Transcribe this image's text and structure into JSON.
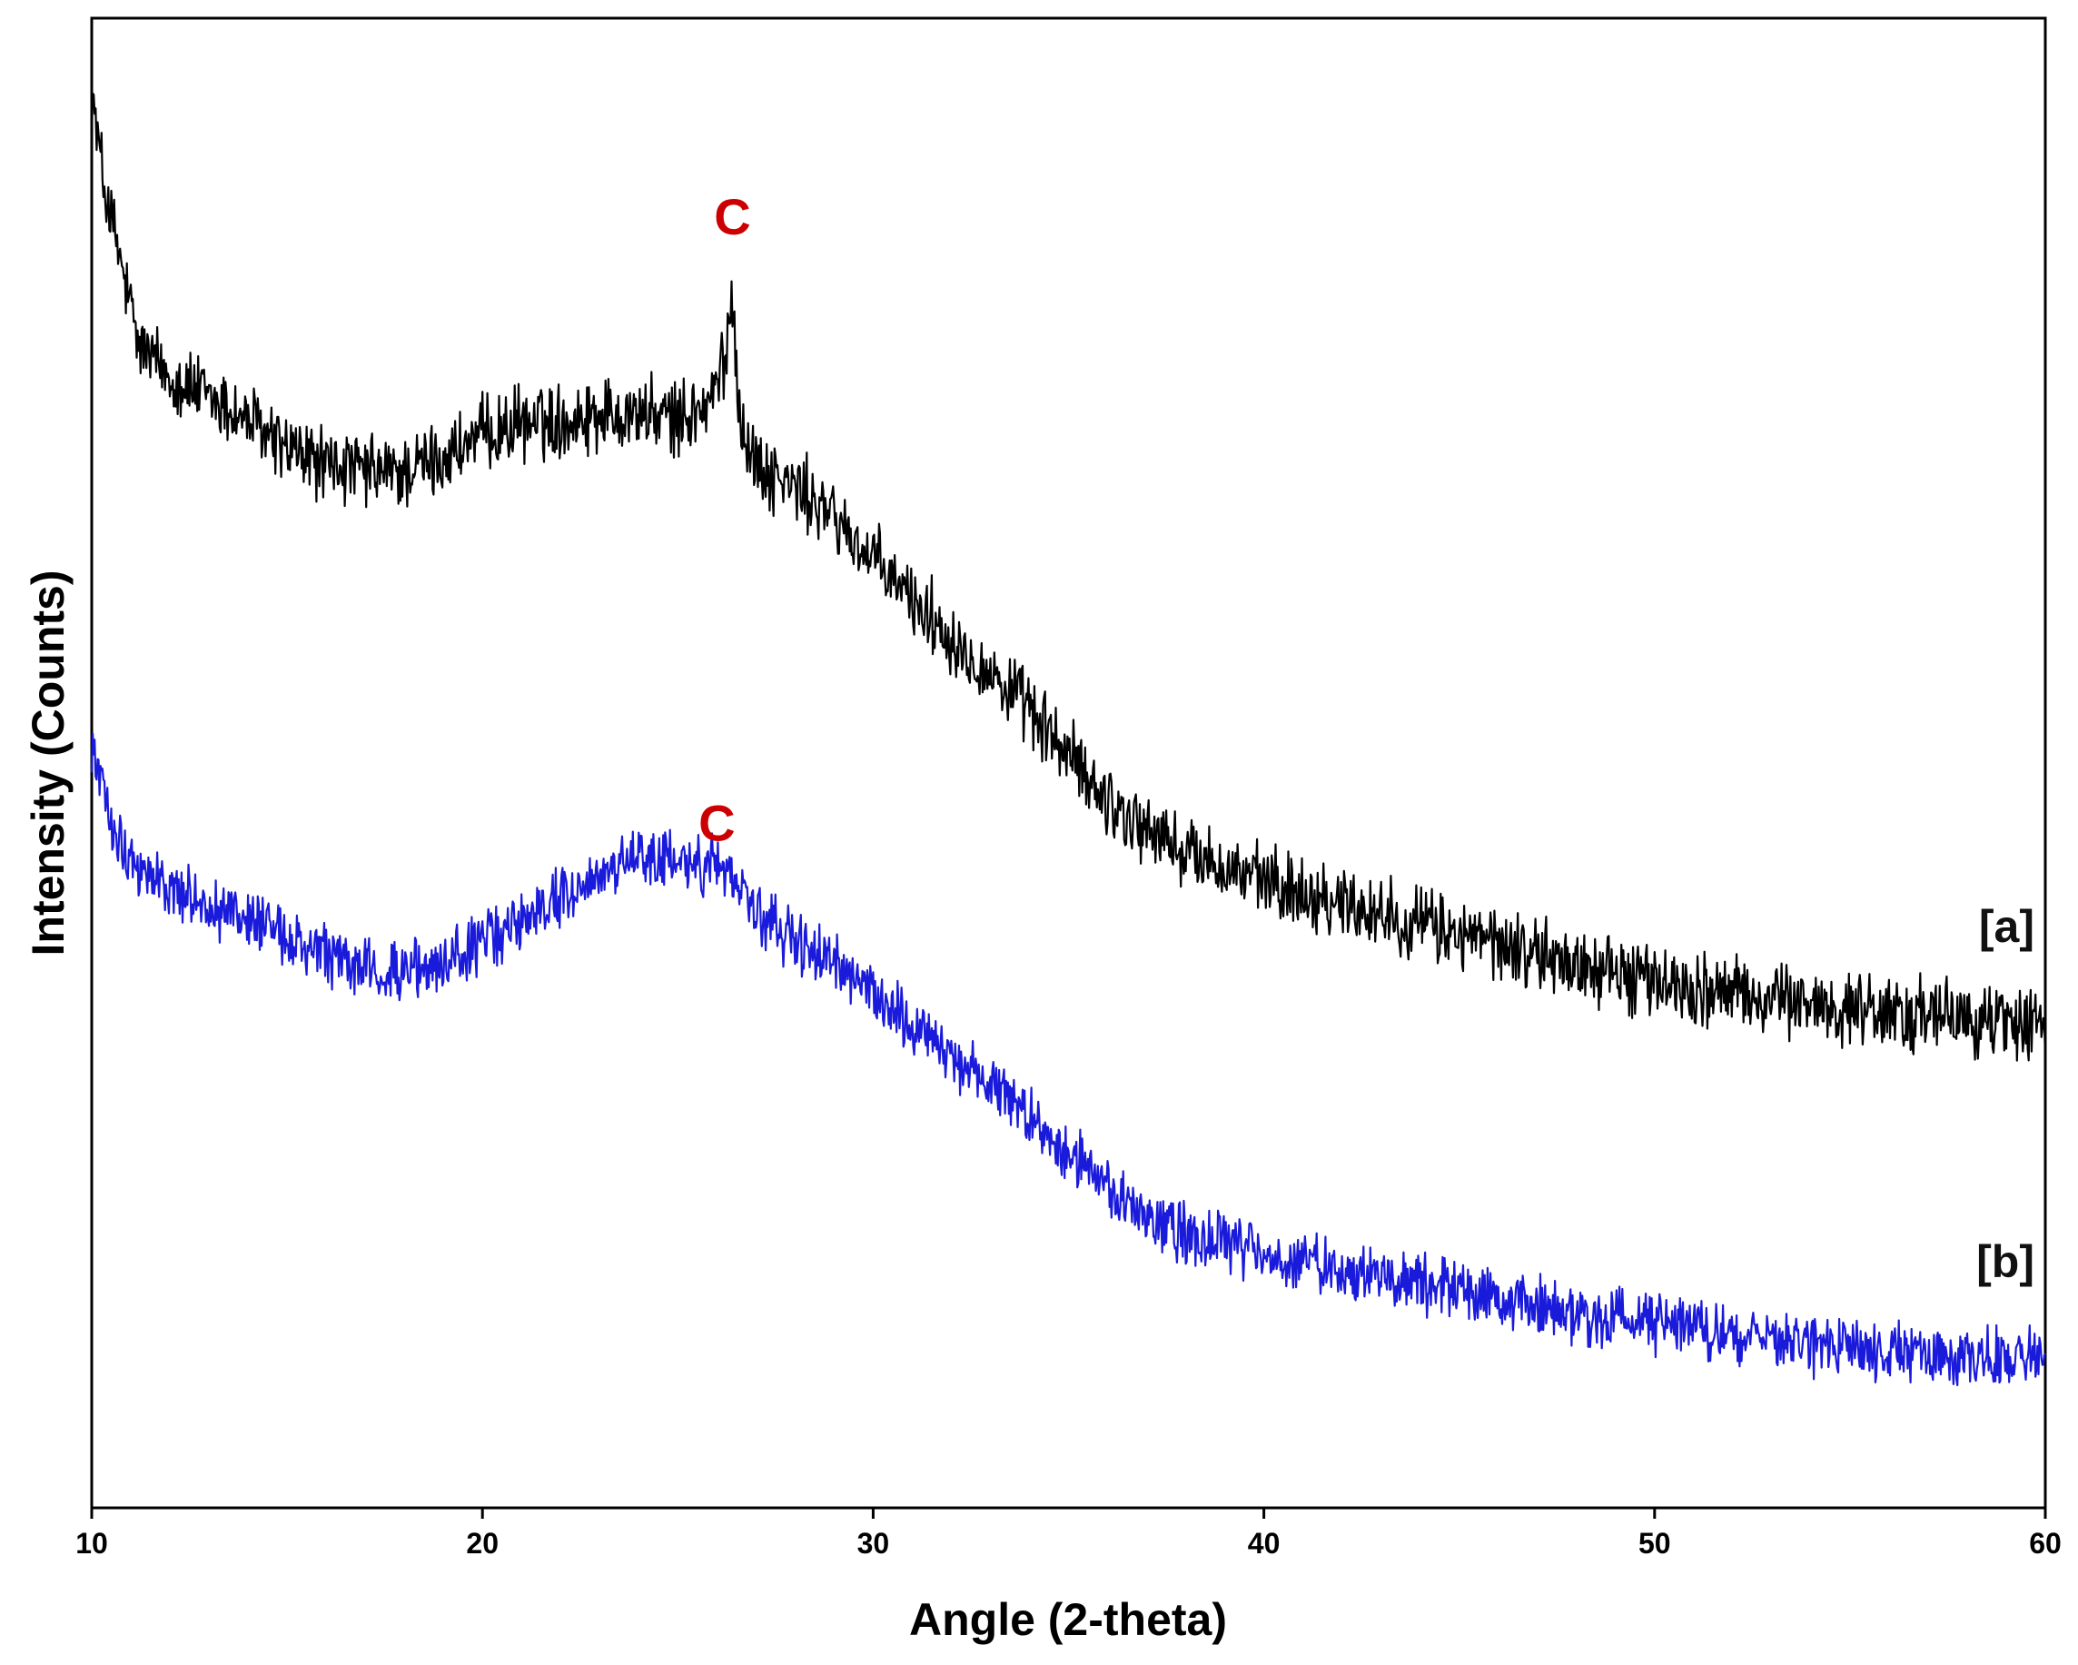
{
  "chart_data": {
    "type": "line",
    "title": "",
    "xlabel": "Angle (2-theta)",
    "ylabel": "Intensity (Counts)",
    "xlim": [
      10,
      60
    ],
    "ylim": [
      0,
      100
    ],
    "xticks": [
      10,
      20,
      30,
      40,
      50,
      60
    ],
    "yticks_shown": false,
    "grid": false,
    "legend": "none",
    "series": [
      {
        "label": "[a]",
        "color": "#000000",
        "noise": 2.0,
        "x": [
          10,
          10.3,
          10.7,
          11.2,
          12,
          13,
          14,
          15,
          16,
          17,
          18,
          19,
          20,
          21,
          22,
          23,
          24,
          25,
          25.8,
          26.2,
          26.4,
          26.6,
          27,
          28,
          29,
          30,
          31,
          32,
          33,
          34,
          35,
          36,
          37,
          38,
          40,
          42,
          44,
          46,
          48,
          50,
          52,
          54,
          56,
          58,
          60
        ],
        "y": [
          95,
          89,
          84,
          78,
          76,
          74.5,
          73,
          71,
          70,
          69.5,
          69.5,
          70.5,
          72,
          72.8,
          73,
          73.5,
          73.5,
          73,
          74,
          77,
          81.5,
          73,
          70,
          68.5,
          66.5,
          63.5,
          61,
          58.5,
          56,
          53.5,
          50.5,
          47.5,
          45.5,
          44,
          42,
          40.7,
          39.2,
          37.8,
          36.5,
          35.3,
          34.5,
          33.8,
          33.2,
          32.8,
          32.5
        ]
      },
      {
        "label": "[b]",
        "color": "#1a1adb",
        "noise": 1.6,
        "x": [
          10,
          10.3,
          10.7,
          11.2,
          12,
          13,
          14,
          15,
          16,
          17,
          18,
          19,
          20,
          21,
          22,
          23,
          24,
          25,
          26,
          26.5,
          27,
          28,
          29,
          30,
          31,
          32,
          33,
          34,
          35,
          36,
          37,
          38,
          40,
          42,
          44,
          46,
          48,
          50,
          52,
          54,
          56,
          58,
          60
        ],
        "y": [
          51,
          48,
          45,
          43,
          41.5,
          40.5,
          39.5,
          38,
          37,
          36.2,
          35.8,
          36.5,
          38,
          39.5,
          41,
          42.5,
          43.5,
          43.5,
          43,
          42.5,
          40,
          38,
          36.5,
          34.5,
          32.5,
          30.5,
          28.5,
          26.5,
          24,
          21.5,
          19.5,
          18.5,
          17,
          16,
          15,
          14,
          13,
          12.2,
          11.6,
          11,
          10.5,
          10.2,
          10
        ]
      }
    ],
    "annotations": [
      {
        "text": "C",
        "x": 26.4,
        "y": 85.5,
        "color": "#cc0000"
      },
      {
        "text": "C",
        "x": 26.0,
        "y": 44.8,
        "color": "#cc0000"
      }
    ]
  }
}
